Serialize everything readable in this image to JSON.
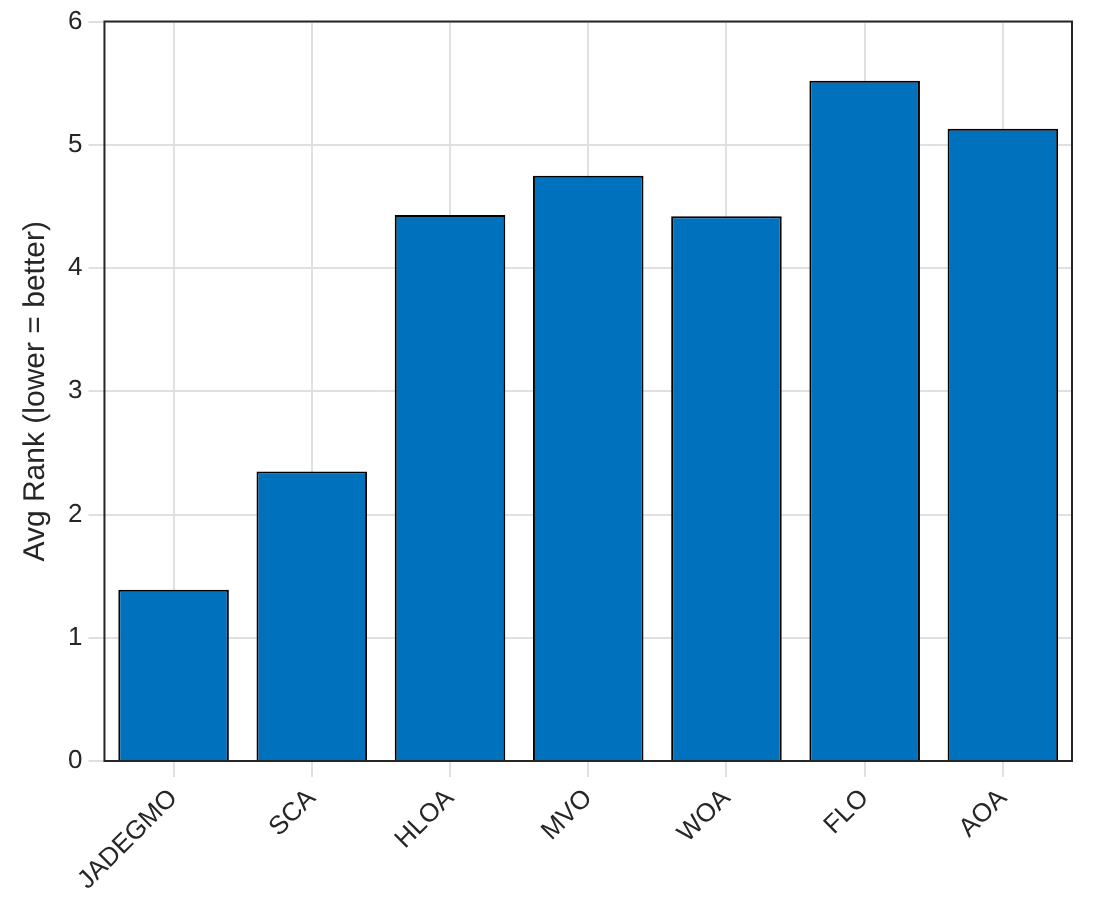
{
  "chart_data": {
    "type": "bar",
    "ylabel": "Avg Rank (lower = better)",
    "categories": [
      "JADEGMO",
      "SCA",
      "HLOA",
      "MVO",
      "WOA",
      "FLO",
      "AOA"
    ],
    "values": [
      1.39,
      2.35,
      4.43,
      4.75,
      4.42,
      5.52,
      5.13
    ],
    "color": "#0072bd",
    "ylim": [
      0,
      6
    ],
    "yticks": [
      0,
      1,
      2,
      3,
      4,
      5,
      6
    ],
    "grid": true
  }
}
